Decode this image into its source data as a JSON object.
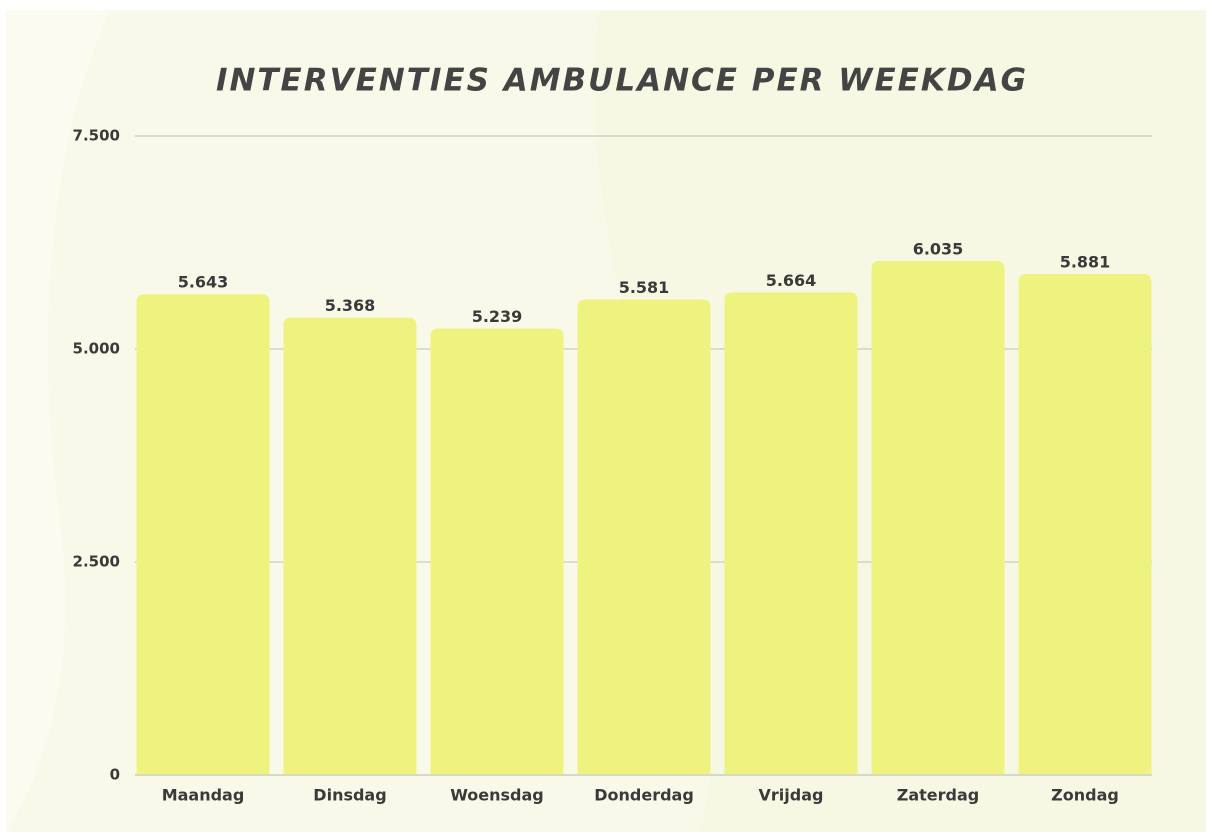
{
  "chart_data": {
    "type": "bar",
    "title": "INTERVENTIES AMBULANCE PER WEEKDAG",
    "categories": [
      "Maandag",
      "Dinsdag",
      "Woensdag",
      "Donderdag",
      "Vrijdag",
      "Zaterdag",
      "Zondag"
    ],
    "values": [
      5643,
      5368,
      5239,
      5581,
      5664,
      6035,
      5881
    ],
    "value_labels": [
      "5.643",
      "5.368",
      "5.239",
      "5.581",
      "5.664",
      "6.035",
      "5.881"
    ],
    "color": "#eef37f",
    "ylim": [
      0,
      7500
    ],
    "yticks": [
      0,
      {
        "value": 2500,
        "label": "2.500"
      },
      {
        "value": 5000,
        "label": "5.000"
      },
      {
        "value": 7500,
        "label": "7.500"
      }
    ],
    "grid": true
  }
}
